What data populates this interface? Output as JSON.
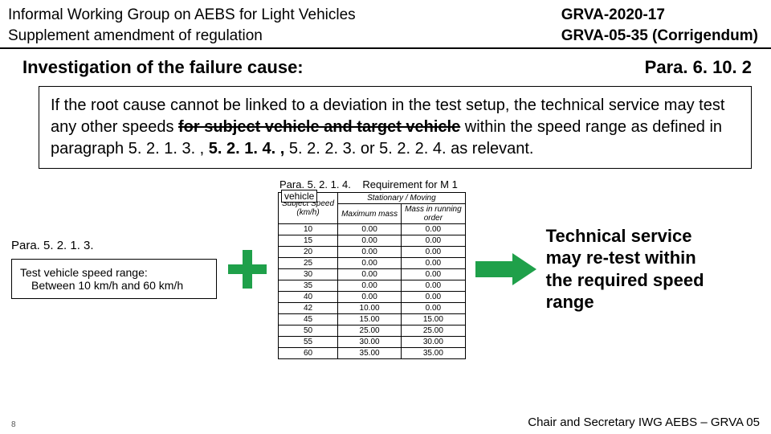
{
  "header": {
    "left_line1": "Informal Working Group on AEBS for Light Vehicles",
    "left_line2": "Supplement amendment of regulation",
    "right_line1": "GRVA-2020-17",
    "right_line2": "GRVA-05-35 (Corrigendum)"
  },
  "section": {
    "title": "Investigation of the failure cause:",
    "ref": "Para. 6. 10. 2"
  },
  "body": {
    "t1": "If the root cause cannot be linked to a deviation in the test setup, the technical service may test any other speeds ",
    "strike1": "for subject vehicle and target vehicle",
    "t2": " within the speed range as defined in paragraph 5. 2. 1. 3. , ",
    "bold1": "5. 2. 1. 4. ,",
    "t3": " 5. 2. 2. 3. or 5. 2. 2. 4. as relevant."
  },
  "left": {
    "ref": "Para. 5. 2. 1. 3.",
    "box_line1": "Test vehicle speed range:",
    "box_line2": "Between 10 km/h and 60 km/h"
  },
  "table": {
    "caption_a": "Para. 5. 2. 1. 4.",
    "caption_b": "Requirement for M 1",
    "overlay": "vehicle",
    "col0_h1": "Subject Speed",
    "col0_h2": "(km/h)",
    "col12_group": "Stationary / Moving",
    "col1_h": "Maximum mass",
    "col2_h1": "Mass in running",
    "col2_h2": "order",
    "rows": [
      {
        "s": "10",
        "a": "0.00",
        "b": "0.00"
      },
      {
        "s": "15",
        "a": "0.00",
        "b": "0.00"
      },
      {
        "s": "20",
        "a": "0.00",
        "b": "0.00"
      },
      {
        "s": "25",
        "a": "0.00",
        "b": "0.00"
      },
      {
        "s": "30",
        "a": "0.00",
        "b": "0.00"
      },
      {
        "s": "35",
        "a": "0.00",
        "b": "0.00"
      },
      {
        "s": "40",
        "a": "0.00",
        "b": "0.00"
      },
      {
        "s": "42",
        "a": "10.00",
        "b": "0.00"
      },
      {
        "s": "45",
        "a": "15.00",
        "b": "15.00"
      },
      {
        "s": "50",
        "a": "25.00",
        "b": "25.00"
      },
      {
        "s": "55",
        "a": "30.00",
        "b": "30.00"
      },
      {
        "s": "60",
        "a": "35.00",
        "b": "35.00"
      }
    ]
  },
  "right_text": "Technical service may re-test within the required speed range",
  "footer": "Chair and Secretary IWG AEBS – GRVA 05",
  "page_num": "8",
  "colors": {
    "accent_green": "#1fa04a"
  }
}
